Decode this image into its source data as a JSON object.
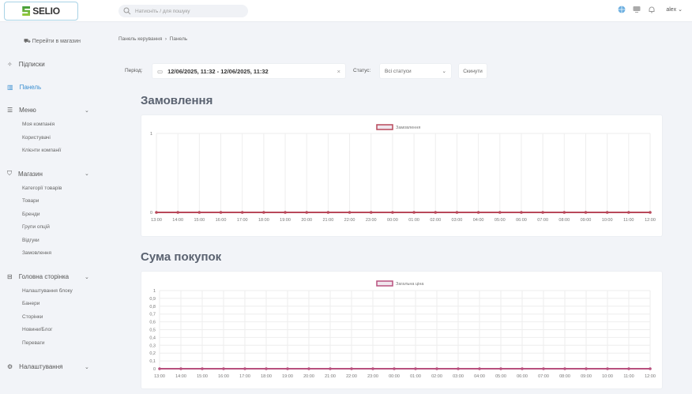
{
  "header": {
    "logo": "SELIO",
    "search_placeholder": "Натисніть / для пошуку",
    "user": "alex",
    "icons": [
      "globe-icon",
      "monitor-icon",
      "bell-icon"
    ]
  },
  "sidebar": {
    "shop_link": "Перейти в магазин",
    "subscriptions": "Підписки",
    "dashboard": "Панель",
    "groups": [
      {
        "label": "Меню",
        "icon": "list-icon",
        "items": [
          "Моя компанія",
          "Користувачі",
          "Клієнти компанії"
        ]
      },
      {
        "label": "Магазин",
        "icon": "bag-icon",
        "items": [
          "Категорії товарів",
          "Товари",
          "Бренди",
          "Групи опцій",
          "Відгуки",
          "Замовлення"
        ]
      },
      {
        "label": "Головна сторінка",
        "icon": "basket-icon",
        "items": [
          "Налаштування блоку",
          "Банери",
          "Сторінки",
          "Новини/Блог",
          "Переваги"
        ]
      },
      {
        "label": "Налаштування",
        "icon": "gear-icon",
        "items": []
      }
    ]
  },
  "breadcrumb": [
    "Панель керування",
    "Панель"
  ],
  "filters": {
    "period_label": "Період:",
    "period_value": "12/06/2025, 11:32 - 12/06/2025, 11:32",
    "status_label": "Статус:",
    "status_value": "Всі статуси",
    "reset": "Скинути"
  },
  "chart_data": [
    {
      "type": "line",
      "title": "Замовлення",
      "legend": "Замовлення",
      "color": "#b8485a",
      "x": [
        "13:00",
        "14:00",
        "15:00",
        "16:00",
        "17:00",
        "18:00",
        "19:00",
        "20:00",
        "21:00",
        "22:00",
        "23:00",
        "00:00",
        "01:00",
        "02:00",
        "03:00",
        "04:00",
        "05:00",
        "06:00",
        "07:00",
        "08:00",
        "09:00",
        "10:00",
        "11:00",
        "12:00"
      ],
      "values": [
        0,
        0,
        0,
        0,
        0,
        0,
        0,
        0,
        0,
        0,
        0,
        0,
        0,
        0,
        0,
        0,
        0,
        0,
        0,
        0,
        0,
        0,
        0,
        0
      ],
      "ylim": [
        0,
        1
      ],
      "yticks": [
        "0",
        "1"
      ],
      "grid": true,
      "legend_position": "top"
    },
    {
      "type": "line",
      "title": "Сума покупок",
      "legend": "Загальна ціна",
      "color": "#b8507e",
      "x": [
        "13:00",
        "14:00",
        "15:00",
        "16:00",
        "17:00",
        "18:00",
        "19:00",
        "20:00",
        "21:00",
        "22:00",
        "23:00",
        "00:00",
        "01:00",
        "02:00",
        "03:00",
        "04:00",
        "05:00",
        "06:00",
        "07:00",
        "08:00",
        "09:00",
        "10:00",
        "11:00",
        "12:00"
      ],
      "values": [
        0,
        0,
        0,
        0,
        0,
        0,
        0,
        0,
        0,
        0,
        0,
        0,
        0,
        0,
        0,
        0,
        0,
        0,
        0,
        0,
        0,
        0,
        0,
        0
      ],
      "ylim": [
        0,
        1
      ],
      "yticks": [
        "0",
        "0,1",
        "0,2",
        "0,3",
        "0,4",
        "0,5",
        "0,6",
        "0,7",
        "0,8",
        "0,9",
        "1"
      ],
      "grid": true,
      "legend_position": "top"
    }
  ]
}
